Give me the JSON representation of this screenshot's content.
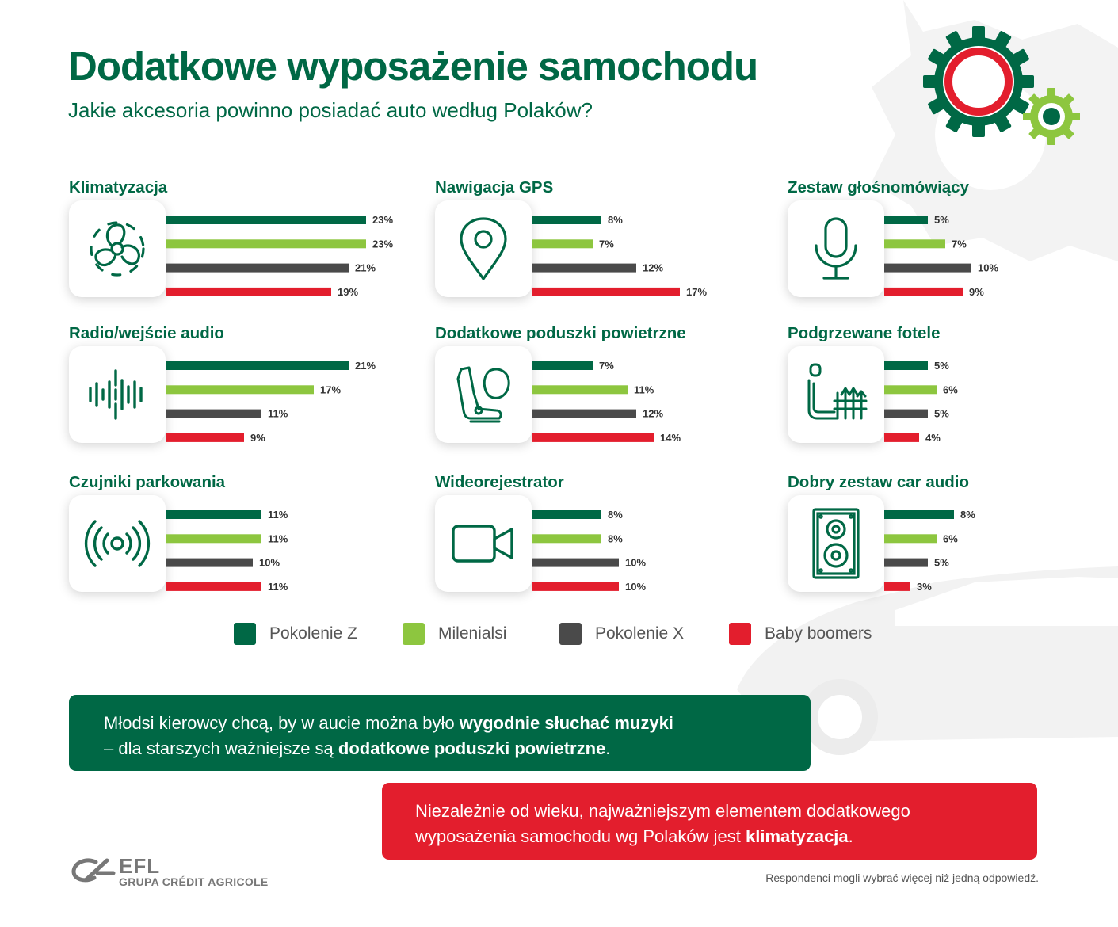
{
  "header": {
    "title": "Dodatkowe wyposażenie samochodu",
    "subtitle": "Jakie akcesoria powinno posiadać auto według Polaków?"
  },
  "colors": {
    "pokolenie_z": "#006845",
    "milenialsi": "#8dc63f",
    "pokolenie_x": "#4a4a4a",
    "baby_boomers": "#e31e2d",
    "brand_green": "#006845",
    "brand_red": "#e31e2d"
  },
  "chart_data": {
    "type": "bar",
    "series_names": [
      "Pokolenie Z",
      "Milenialsi",
      "Pokolenie X",
      "Baby boomers"
    ],
    "panels": [
      {
        "title": "Klimatyzacja",
        "icon": "fan-icon",
        "values": [
          23,
          23,
          21,
          19
        ],
        "labels": [
          "23%",
          "23%",
          "21%",
          "19%"
        ]
      },
      {
        "title": "Nawigacja GPS",
        "icon": "map-pin-icon",
        "values": [
          8,
          7,
          12,
          17
        ],
        "labels": [
          "8%",
          "7%",
          "12%",
          "17%"
        ]
      },
      {
        "title": "Zestaw głośnomówiący",
        "icon": "microphone-icon",
        "values": [
          5,
          7,
          10,
          9
        ],
        "labels": [
          "5%",
          "7%",
          "10%",
          "9%"
        ]
      },
      {
        "title": "Radio/wejście audio",
        "icon": "sound-wave-icon",
        "values": [
          21,
          17,
          11,
          9
        ],
        "labels": [
          "21%",
          "17%",
          "11%",
          "9%"
        ]
      },
      {
        "title": "Dodatkowe poduszki powietrzne",
        "icon": "airbag-seat-icon",
        "values": [
          7,
          11,
          12,
          14
        ],
        "labels": [
          "7%",
          "11%",
          "12%",
          "14%"
        ]
      },
      {
        "title": "Podgrzewane fotele",
        "icon": "heated-seat-icon",
        "values": [
          5,
          6,
          5,
          4
        ],
        "labels": [
          "5%",
          "6%",
          "5%",
          "4%"
        ]
      },
      {
        "title": "Czujniki parkowania",
        "icon": "parking-sensor-icon",
        "values": [
          11,
          11,
          10,
          11
        ],
        "labels": [
          "11%",
          "11%",
          "10%",
          "11%"
        ]
      },
      {
        "title": "Wideorejestrator",
        "icon": "video-camera-icon",
        "values": [
          8,
          8,
          10,
          10
        ],
        "labels": [
          "8%",
          "8%",
          "10%",
          "10%"
        ]
      },
      {
        "title": "Dobry zestaw car audio",
        "icon": "speaker-icon",
        "values": [
          8,
          6,
          5,
          3
        ],
        "labels": [
          "8%",
          "6%",
          "5%",
          "3%"
        ]
      }
    ]
  },
  "legend": {
    "items": [
      "Pokolenie Z",
      "Milenialsi",
      "Pokolenie X",
      "Baby boomers"
    ]
  },
  "callout_green": {
    "text1": "Młodsi kierowcy chcą, by w aucie można było ",
    "bold1": "wygodnie słuchać muzyki",
    "text2": "– dla starszych ważniejsze są ",
    "bold2": "dodatkowe poduszki powietrzne",
    "end": "."
  },
  "callout_red": {
    "text1": "Niezależnie od wieku, najważniejszym elementem dodatkowego",
    "text2": "wyposażenia samochodu wg Polaków jest ",
    "bold": "klimatyzacja",
    "end": "."
  },
  "logo": {
    "name": "EFL",
    "sub": "GRUPA CRÉDIT AGRICOLE"
  },
  "footnote": "Respondenci mogli wybrać więcej niż jedną odpowiedź."
}
